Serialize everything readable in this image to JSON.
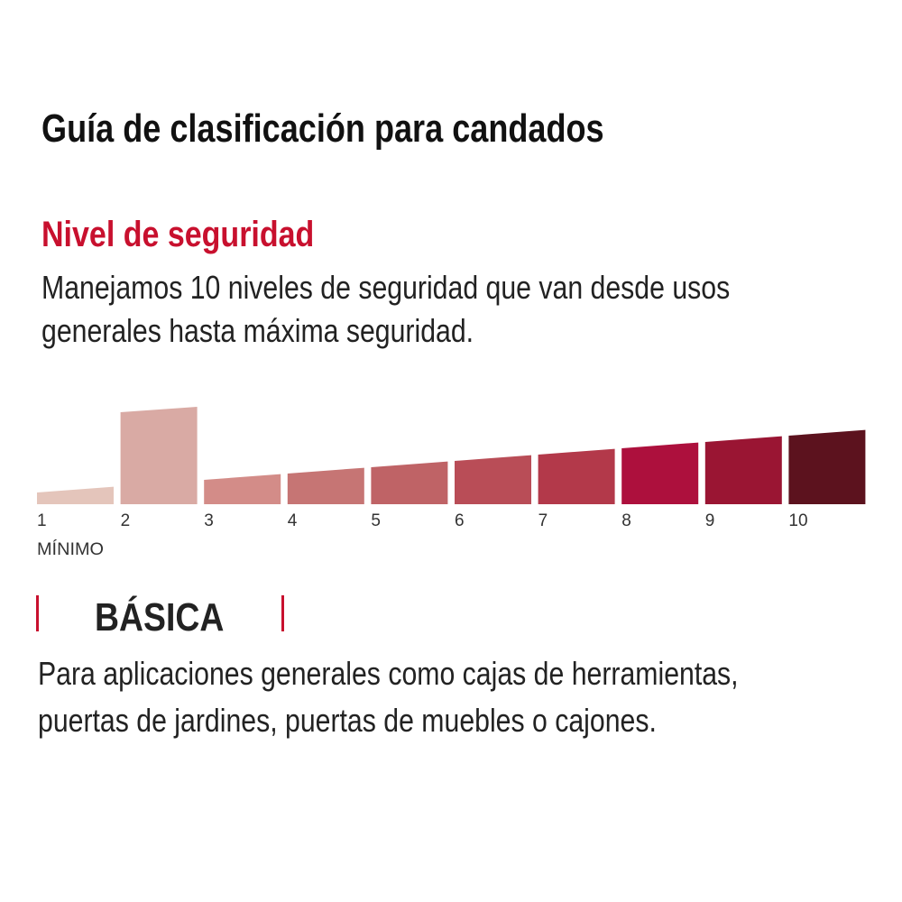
{
  "title": "Guía de clasificación para candados",
  "section": {
    "heading": "Nivel de seguridad",
    "description_lines": [
      "Manejamos 10 niveles de seguridad que van desde usos",
      "generales hasta máxima seguridad."
    ]
  },
  "scale": {
    "levels": [
      "1",
      "2",
      "3",
      "4",
      "5",
      "6",
      "7",
      "8",
      "9",
      "10"
    ],
    "min_label": "MÍNIMO",
    "selected_level": 2,
    "colors": [
      "#e4c5bb",
      "#d9aaa4",
      "#d38c88",
      "#c67574",
      "#bf6366",
      "#b94d57",
      "#b3394a",
      "#ad103d",
      "#9a1533",
      "#5c121e"
    ]
  },
  "level": {
    "name": "BÁSICA",
    "accent": "#c8102e",
    "description_lines": [
      "Para aplicaciones generales como cajas de herramientas,",
      "puertas de jardines, puertas de muebles o cajones."
    ]
  }
}
